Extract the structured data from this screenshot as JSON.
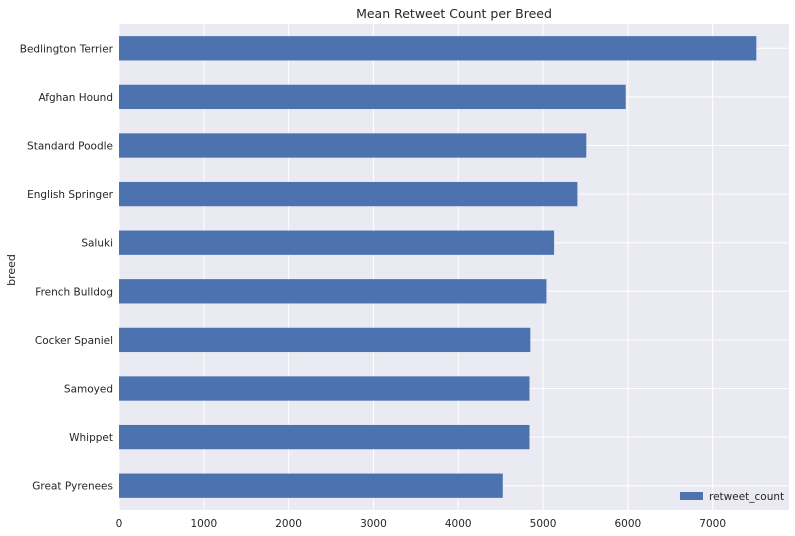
{
  "chart_data": {
    "type": "bar",
    "orientation": "horizontal",
    "title": "Mean Retweet Count per Breed",
    "xlabel": "",
    "ylabel": "breed",
    "categories": [
      "Bedlington Terrier",
      "Afghan Hound",
      "Standard Poodle",
      "English Springer",
      "Saluki",
      "French Bulldog",
      "Cocker Spaniel",
      "Samoyed",
      "Whippet",
      "Great Pyrenees"
    ],
    "series": [
      {
        "name": "retweet_count",
        "values": [
          7515,
          5975,
          5510,
          5405,
          5130,
          5040,
          4850,
          4840,
          4840,
          4525
        ],
        "color": "#4c72b0"
      }
    ],
    "xlim": [
      0,
      7900
    ],
    "xticks": [
      0,
      1000,
      2000,
      3000,
      4000,
      5000,
      6000,
      7000
    ],
    "grid": true,
    "legend_position": "bottom-right",
    "background_color": "#eaeaf2",
    "grid_color": "#ffffff"
  }
}
